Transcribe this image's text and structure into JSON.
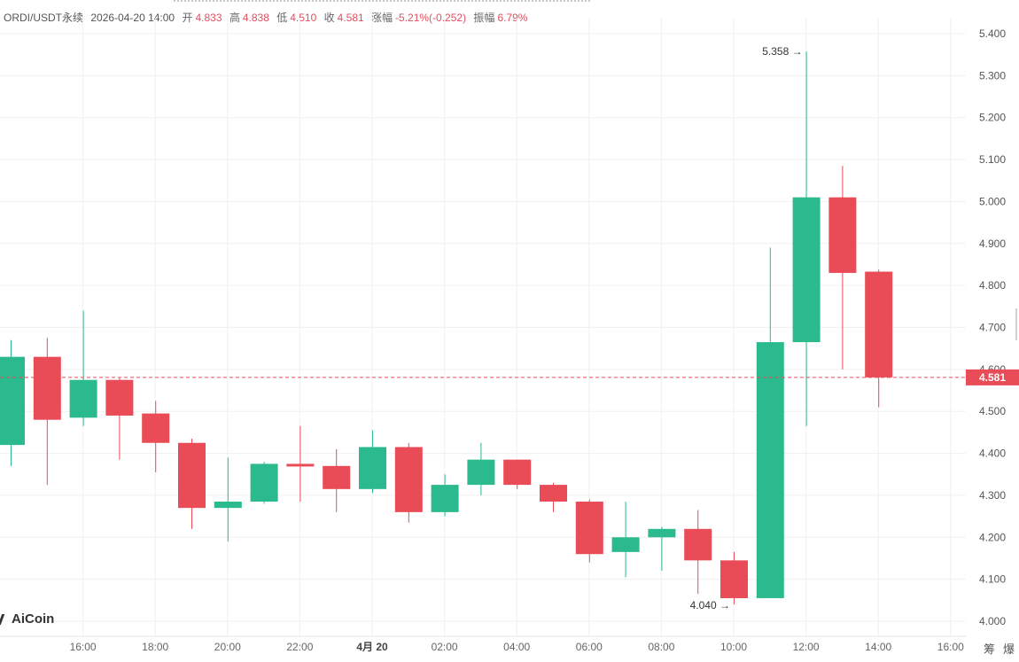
{
  "header": {
    "symbol": "ORDI/USDT永续",
    "datetime": "2026-04-20 14:00",
    "open_label": "开",
    "open": "4.833",
    "high_label": "高",
    "high": "4.838",
    "low_label": "低",
    "low": "4.510",
    "close_label": "收",
    "close": "4.581",
    "change_label": "涨幅",
    "change": "-5.21%(-0.252)",
    "amplitude_label": "振幅",
    "amplitude": "6.79%"
  },
  "brand": "AiCoin",
  "corner_buttons": [
    "筹",
    "爆"
  ],
  "colors": {
    "up": "#2bba8d",
    "down": "#e94b57",
    "price_line": "#e94b57",
    "grid": "#f0f0f0"
  },
  "chart_data": {
    "type": "candlestick",
    "interval": "1h",
    "current_price": 4.581,
    "current_price_label": "4.581",
    "max_label": "5.358",
    "min_label": "4.040",
    "y_ticks": [
      "4.000",
      "4.100",
      "4.200",
      "4.300",
      "4.400",
      "4.500",
      "4.600",
      "4.700",
      "4.800",
      "4.900",
      "5.000",
      "5.100",
      "5.200",
      "5.300",
      "5.400"
    ],
    "ylim": [
      3.985,
      5.435
    ],
    "x_ticks": [
      "16:00",
      "18:00",
      "20:00",
      "22:00",
      "4月 20",
      "02:00",
      "04:00",
      "06:00",
      "08:00",
      "10:00",
      "12:00",
      "14:00",
      "16:00"
    ],
    "x_tick_candle_index": [
      2,
      4,
      6,
      8,
      10,
      12,
      14,
      16,
      18,
      20,
      22,
      24,
      26
    ],
    "candles": [
      {
        "o": 4.42,
        "h": 4.67,
        "l": 4.37,
        "c": 4.63
      },
      {
        "o": 4.63,
        "h": 4.675,
        "l": 4.325,
        "c": 4.48
      },
      {
        "o": 4.485,
        "h": 4.74,
        "l": 4.465,
        "c": 4.575
      },
      {
        "o": 4.575,
        "h": 4.58,
        "l": 4.385,
        "c": 4.49
      },
      {
        "o": 4.495,
        "h": 4.525,
        "l": 4.355,
        "c": 4.425
      },
      {
        "o": 4.425,
        "h": 4.435,
        "l": 4.22,
        "c": 4.27
      },
      {
        "o": 4.27,
        "h": 4.39,
        "l": 4.19,
        "c": 4.285
      },
      {
        "o": 4.285,
        "h": 4.38,
        "l": 4.28,
        "c": 4.375
      },
      {
        "o": 4.375,
        "h": 4.465,
        "l": 4.285,
        "c": 4.37
      },
      {
        "o": 4.37,
        "h": 4.41,
        "l": 4.26,
        "c": 4.315
      },
      {
        "o": 4.315,
        "h": 4.455,
        "l": 4.305,
        "c": 4.415
      },
      {
        "o": 4.415,
        "h": 4.425,
        "l": 4.235,
        "c": 4.26
      },
      {
        "o": 4.26,
        "h": 4.35,
        "l": 4.25,
        "c": 4.325
      },
      {
        "o": 4.325,
        "h": 4.425,
        "l": 4.3,
        "c": 4.385
      },
      {
        "o": 4.385,
        "h": 4.385,
        "l": 4.315,
        "c": 4.325
      },
      {
        "o": 4.325,
        "h": 4.33,
        "l": 4.26,
        "c": 4.285
      },
      {
        "o": 4.285,
        "h": 4.29,
        "l": 4.14,
        "c": 4.16
      },
      {
        "o": 4.165,
        "h": 4.285,
        "l": 4.105,
        "c": 4.2
      },
      {
        "o": 4.2,
        "h": 4.225,
        "l": 4.12,
        "c": 4.22
      },
      {
        "o": 4.22,
        "h": 4.265,
        "l": 4.065,
        "c": 4.145
      },
      {
        "o": 4.145,
        "h": 4.165,
        "l": 4.04,
        "c": 4.055
      },
      {
        "o": 4.055,
        "h": 4.89,
        "l": 4.055,
        "c": 4.665
      },
      {
        "o": 4.665,
        "h": 5.358,
        "l": 4.465,
        "c": 5.01
      },
      {
        "o": 5.01,
        "h": 5.085,
        "l": 4.6,
        "c": 4.83
      },
      {
        "o": 4.833,
        "h": 4.838,
        "l": 4.51,
        "c": 4.581
      }
    ]
  }
}
